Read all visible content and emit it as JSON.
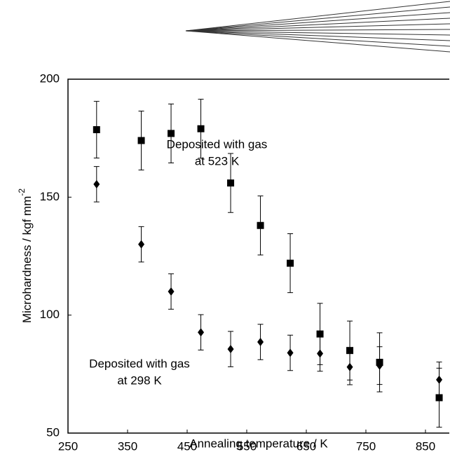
{
  "chart_data": {
    "type": "scatter",
    "x_label": "Annealing temperature / K",
    "y_label": "Microhardness / kgf mm",
    "y_label_sup": "-2",
    "annotations": [
      {
        "lines": [
          "Deposited with gas",
          "at 523 K"
        ],
        "x": 500,
        "y": 172
      },
      {
        "lines": [
          "Deposited with gas",
          "at 298 K"
        ],
        "x": 370,
        "y": 79
      }
    ],
    "x": [
      298,
      373,
      423,
      473,
      523,
      573,
      623,
      673,
      723,
      773,
      873
    ],
    "series": [
      {
        "marker": "square",
        "color": "#000000",
        "values": [
          178.6,
          174,
          177,
          179,
          156,
          138,
          122,
          92,
          85,
          80,
          65
        ],
        "errors": [
          12,
          12.5,
          12.5,
          12.5,
          12.5,
          12.5,
          12.5,
          13,
          12.5,
          12.5,
          12.5
        ]
      },
      {
        "marker": "diamond",
        "color": "#000000",
        "values": [
          155.5,
          130,
          110,
          92.7,
          85.6,
          88.6,
          84,
          83.7,
          78,
          78.6,
          72.6
        ],
        "errors": [
          7.5,
          7.5,
          7.5,
          7.5,
          7.5,
          7.5,
          7.5,
          7.5,
          7.5,
          8,
          7.5
        ]
      }
    ],
    "xlim": [
      250,
      890
    ],
    "xticks": [
      250,
      350,
      450,
      550,
      650,
      750,
      850
    ],
    "ylim": [
      50,
      200
    ],
    "yticks": [
      50,
      100,
      150,
      200
    ]
  }
}
